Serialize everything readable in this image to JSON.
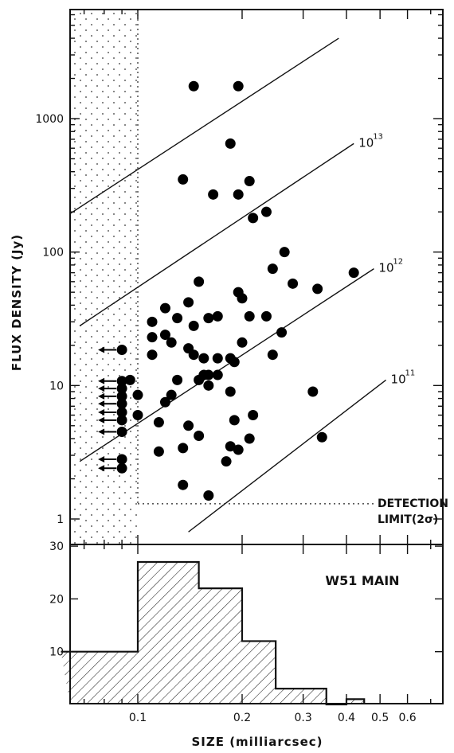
{
  "chart_data": [
    {
      "type": "scatter",
      "ylabel": "FLUX DENSITY (Jy)",
      "xscale": "log",
      "yscale": "log",
      "xlim": [
        0.06,
        0.8
      ],
      "ylim": [
        0.6,
        6000
      ],
      "yticks": [
        1,
        10,
        100,
        1000
      ],
      "ytick_labels": [
        "1",
        "10",
        "100",
        "1000"
      ],
      "brightness_lines": [
        {
          "label": "",
          "points": [
            [
              0.063,
              190
            ],
            [
              0.38,
              4000
            ]
          ]
        },
        {
          "label": "10",
          "exponent": "13",
          "points": [
            [
              0.068,
              28
            ],
            [
              0.42,
              650
            ]
          ]
        },
        {
          "label": "10",
          "exponent": "12",
          "points": [
            [
              0.068,
              2.7
            ],
            [
              0.48,
              75
            ]
          ]
        },
        {
          "label": "10",
          "exponent": "11",
          "points": [
            [
              0.14,
              0.8
            ],
            [
              0.52,
              11
            ]
          ]
        }
      ],
      "detection_limit": {
        "x": 0.1,
        "y": 1.3,
        "label": "DETECTION",
        "label2": "LIMIT(2σ)"
      },
      "points": [
        [
          0.145,
          1750
        ],
        [
          0.195,
          1750
        ],
        [
          0.185,
          650
        ],
        [
          0.135,
          350
        ],
        [
          0.165,
          270
        ],
        [
          0.195,
          270
        ],
        [
          0.21,
          340
        ],
        [
          0.215,
          180
        ],
        [
          0.235,
          200
        ],
        [
          0.265,
          100
        ],
        [
          0.245,
          75
        ],
        [
          0.28,
          58
        ],
        [
          0.33,
          53
        ],
        [
          0.42,
          70
        ],
        [
          0.15,
          60
        ],
        [
          0.195,
          50
        ],
        [
          0.2,
          45
        ],
        [
          0.11,
          30
        ],
        [
          0.12,
          38
        ],
        [
          0.14,
          42
        ],
        [
          0.13,
          32
        ],
        [
          0.145,
          28
        ],
        [
          0.16,
          32
        ],
        [
          0.17,
          33
        ],
        [
          0.21,
          33
        ],
        [
          0.235,
          33
        ],
        [
          0.26,
          25
        ],
        [
          0.245,
          17
        ],
        [
          0.11,
          23
        ],
        [
          0.12,
          24
        ],
        [
          0.125,
          21
        ],
        [
          0.14,
          19
        ],
        [
          0.2,
          21
        ],
        [
          0.11,
          17
        ],
        [
          0.145,
          17
        ],
        [
          0.155,
          16
        ],
        [
          0.17,
          16
        ],
        [
          0.185,
          16
        ],
        [
          0.19,
          15
        ],
        [
          0.095,
          11
        ],
        [
          0.13,
          11
        ],
        [
          0.155,
          12
        ],
        [
          0.16,
          12
        ],
        [
          0.17,
          12
        ],
        [
          0.15,
          11
        ],
        [
          0.16,
          10
        ],
        [
          0.1,
          8.5
        ],
        [
          0.12,
          7.5
        ],
        [
          0.125,
          8.5
        ],
        [
          0.185,
          9
        ],
        [
          0.32,
          9
        ],
        [
          0.1,
          6
        ],
        [
          0.115,
          5.3
        ],
        [
          0.14,
          5
        ],
        [
          0.19,
          5.5
        ],
        [
          0.215,
          6
        ],
        [
          0.15,
          4.2
        ],
        [
          0.21,
          4
        ],
        [
          0.34,
          4.1
        ],
        [
          0.115,
          3.2
        ],
        [
          0.135,
          3.4
        ],
        [
          0.185,
          3.5
        ],
        [
          0.195,
          3.3
        ],
        [
          0.18,
          2.7
        ],
        [
          0.135,
          1.8
        ],
        [
          0.16,
          1.5
        ]
      ],
      "upper_limits": [
        {
          "x": 0.09,
          "y": 18.5
        },
        {
          "x": 0.09,
          "y": 10.8
        },
        {
          "x": 0.09,
          "y": 9.5
        },
        {
          "x": 0.09,
          "y": 8.3
        },
        {
          "x": 0.09,
          "y": 7.3
        },
        {
          "x": 0.09,
          "y": 6.3
        },
        {
          "x": 0.09,
          "y": 5.5
        },
        {
          "x": 0.09,
          "y": 4.5
        },
        {
          "x": 0.09,
          "y": 2.8
        },
        {
          "x": 0.09,
          "y": 2.4
        }
      ]
    },
    {
      "type": "bar",
      "title": "W51 MAIN",
      "xlabel": "SIZE (milliarcsec)",
      "xscale": "log",
      "xlim": [
        0.06,
        0.8
      ],
      "ylim": [
        0,
        32
      ],
      "yticks": [
        10,
        20,
        30
      ],
      "ytick_labels": [
        "10",
        "20",
        "30"
      ],
      "xticks": [
        0.1,
        0.2,
        0.3,
        0.4,
        0.5,
        0.6
      ],
      "xtick_labels": [
        "0.1",
        "0.2",
        "0.3",
        "0.4",
        "0.5",
        "0.6"
      ],
      "bins": [
        {
          "from": 0.06,
          "to": 0.1,
          "count": 10
        },
        {
          "from": 0.1,
          "to": 0.15,
          "count": 27
        },
        {
          "from": 0.15,
          "to": 0.2,
          "count": 22
        },
        {
          "from": 0.2,
          "to": 0.25,
          "count": 12
        },
        {
          "from": 0.25,
          "to": 0.35,
          "count": 3
        },
        {
          "from": 0.35,
          "to": 0.4,
          "count": 0
        },
        {
          "from": 0.4,
          "to": 0.45,
          "count": 1
        }
      ]
    }
  ]
}
